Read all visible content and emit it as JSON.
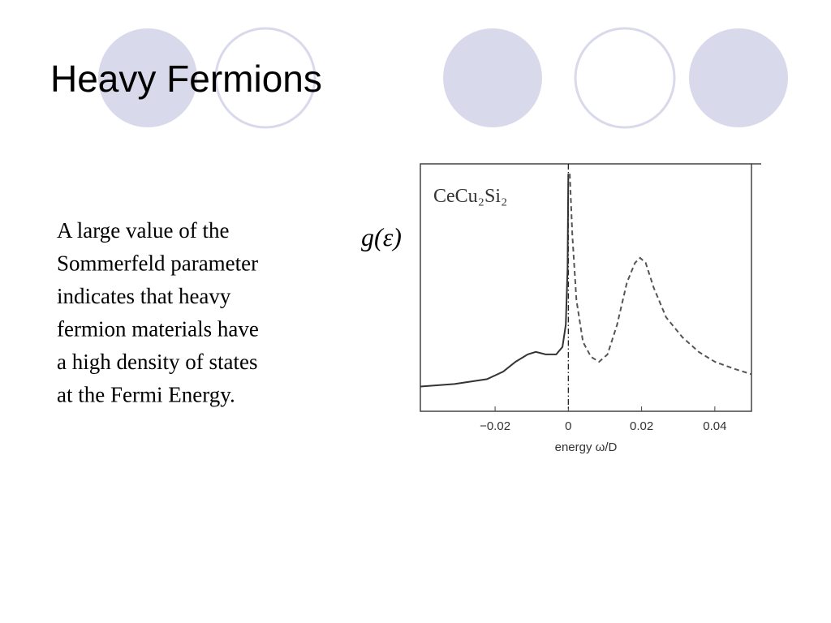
{
  "title": "Heavy Fermions",
  "body_lines": [
    "A large value of the",
    "Sommerfeld parameter",
    "indicates that heavy",
    "fermion materials have",
    "a high density of states",
    "at the Fermi Energy."
  ],
  "chart_data": {
    "type": "line",
    "annotation": "CeCu₂Si₂",
    "xlabel": "energy ω/D",
    "ylabel": "g(ε)",
    "xlim": [
      -0.0404,
      0.05
    ],
    "ylim": [
      0,
      1
    ],
    "xticks": [
      {
        "value": -0.02,
        "label": "−0.02"
      },
      0,
      0.02,
      0.04
    ],
    "vline_x": 0,
    "series": [
      {
        "color": "#333333",
        "dash": "solid",
        "x": [
          -0.0404,
          -0.0311,
          -0.0222,
          -0.0178,
          -0.0144,
          -0.0111,
          -0.0089,
          -0.0062,
          -0.0033,
          -0.0016,
          -0.0007,
          -0.0002,
          0
        ],
        "values": [
          0.1,
          0.11,
          0.13,
          0.16,
          0.2,
          0.23,
          0.24,
          0.23,
          0.23,
          0.26,
          0.35,
          0.58,
          0.96
        ]
      },
      {
        "color": "#555555",
        "dash": "dashed",
        "x": [
          0.0004,
          0.0011,
          0.0022,
          0.004,
          0.0062,
          0.0084,
          0.0107,
          0.0133,
          0.016,
          0.0182,
          0.0196,
          0.0211,
          0.0233,
          0.0267,
          0.0311,
          0.0356,
          0.04,
          0.0456,
          0.05
        ],
        "values": [
          0.96,
          0.71,
          0.45,
          0.28,
          0.22,
          0.2,
          0.23,
          0.35,
          0.52,
          0.6,
          0.62,
          0.6,
          0.5,
          0.38,
          0.3,
          0.24,
          0.2,
          0.17,
          0.15
        ]
      }
    ]
  }
}
